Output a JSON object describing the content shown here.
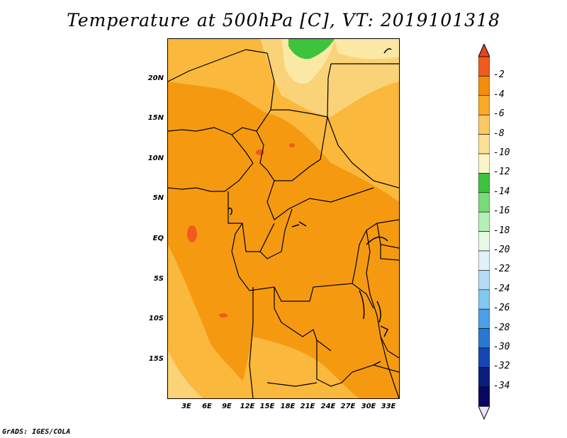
{
  "title": "Temperature at 500hPa [C], VT: 2019101318",
  "credit": "GrADS: IGES/COLA",
  "lat_labels": [
    "20N",
    "15N",
    "10N",
    "5N",
    "EQ",
    "5S",
    "10S",
    "15S"
  ],
  "lon_labels": [
    "3E",
    "6E",
    "9E",
    "12E",
    "15E",
    "18E",
    "21E",
    "24E",
    "27E",
    "30E",
    "33E"
  ],
  "colorbar": {
    "labels": [
      "-2",
      "-4",
      "-6",
      "-8",
      "-10",
      "-12",
      "-14",
      "-16",
      "-18",
      "-20",
      "-22",
      "-24",
      "-26",
      "-28",
      "-30",
      "-32",
      "-34"
    ],
    "colors": [
      "#f05a1e",
      "#f58c0a",
      "#faaa28",
      "#fac864",
      "#fae196",
      "#faf5c8",
      "#3ec33e",
      "#78dc78",
      "#b4f0b4",
      "#e6fae6",
      "#e1f0fa",
      "#b4dcf5",
      "#82c8f0",
      "#4ba0e6",
      "#2878d2",
      "#1446b4",
      "#0a1e7d",
      "#080862"
    ],
    "under_color": "#e6e6fa",
    "over_color": "#e6461e"
  },
  "colors": {
    "field_main": "#f59a10",
    "field_light": "#fab83c",
    "field_lighter": "#fad278",
    "field_pale": "#fbe8a4",
    "field_green": "#3ec33e",
    "field_hot": "#f05a1e",
    "borders": "#000000"
  }
}
